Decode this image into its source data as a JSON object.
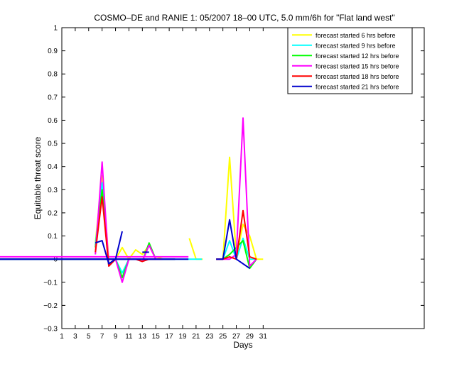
{
  "chart_data": {
    "type": "line",
    "title": "COSMO–DE and RANIE 1: 05/2007 18–00 UTC, 5.0 mm/6h for \"Flat land west\"",
    "xlabel": "Days",
    "ylabel": "Equitable threat score",
    "xlim": [
      1,
      55
    ],
    "ylim": [
      -0.3,
      1
    ],
    "xticks": [
      1,
      3,
      5,
      7,
      9,
      11,
      13,
      15,
      17,
      19,
      21,
      23,
      25,
      27,
      29,
      31
    ],
    "yticks": [
      -0.3,
      -0.2,
      -0.1,
      0,
      0.1,
      0.2,
      0.3,
      0.4,
      0.5,
      0.6,
      0.7,
      0.8,
      0.9,
      1
    ],
    "ytick_labels": [
      "−0.3",
      "−0.2",
      "−0.1",
      "0",
      "0.1",
      "0.2",
      "0.3",
      "0.4",
      "0.5",
      "0.6",
      "0.7",
      "0.8",
      "0.9",
      "1"
    ],
    "grid": false,
    "legend_position": "top-right",
    "series": [
      {
        "name": "forecast started 6 hrs before",
        "color": "#ffff00",
        "x": [
          6,
          7,
          8,
          9,
          10,
          11,
          12,
          13,
          14,
          15,
          16,
          17,
          18,
          19,
          20,
          21,
          22,
          23,
          24,
          25,
          26,
          27,
          28,
          29,
          30,
          31
        ],
        "y": [
          0.07,
          0.36,
          0.0,
          0.0,
          0.05,
          0.0,
          0.04,
          0.02,
          0.06,
          0.0,
          0.01,
          null,
          null,
          null,
          0.09,
          0.0,
          0.0,
          null,
          0.0,
          0.0,
          0.44,
          0.01,
          0.15,
          0.1,
          0.0,
          0.0
        ]
      },
      {
        "name": "forecast started 9 hrs before",
        "color": "#00ffff",
        "x": [
          6,
          7,
          8,
          9,
          10,
          11,
          12,
          13,
          14,
          15,
          16,
          17,
          18,
          19,
          20,
          21,
          22,
          23,
          24,
          25,
          26,
          27,
          28,
          29,
          30,
          31
        ],
        "y": [
          0.06,
          0.33,
          -0.02,
          0.0,
          -0.06,
          0.0,
          0.0,
          0.0,
          0.0,
          0.0,
          0.0,
          null,
          null,
          null,
          null,
          null,
          0.0,
          null,
          0.0,
          0.0,
          0.08,
          0.0,
          0.09,
          0.0,
          0.0,
          null
        ]
      },
      {
        "name": "forecast started 12 hrs before",
        "color": "#00ff00",
        "x": [
          6,
          7,
          8,
          9,
          10,
          11,
          12,
          13,
          14,
          15,
          16,
          17,
          18,
          19,
          20,
          21,
          22,
          23,
          24,
          25,
          26,
          27,
          28,
          29,
          30,
          31
        ],
        "y": [
          0.05,
          0.3,
          -0.03,
          0.0,
          -0.08,
          0.0,
          0.0,
          -0.01,
          0.07,
          0.0,
          0.0,
          null,
          0.0,
          null,
          null,
          null,
          null,
          null,
          0.0,
          0.0,
          0.02,
          0.05,
          0.08,
          -0.04,
          0.0,
          null
        ]
      },
      {
        "name": "forecast started 15 hrs before",
        "color": "#ff00ff",
        "x": [
          6,
          7,
          8,
          9,
          10,
          11,
          12,
          13,
          14,
          15,
          16,
          17,
          18,
          19,
          20,
          21,
          22,
          23,
          24,
          25,
          26,
          27,
          28,
          29,
          30,
          31
        ],
        "y": [
          0.02,
          0.42,
          -0.03,
          0.0,
          -0.1,
          0.0,
          0.0,
          -0.01,
          0.06,
          0.0,
          0.0,
          null,
          null,
          null,
          0.01,
          null,
          null,
          null,
          0.0,
          0.0,
          0.0,
          0.02,
          0.61,
          -0.03,
          0.0,
          null
        ]
      },
      {
        "name": "forecast started 18 hrs before",
        "color": "#ff0000",
        "x": [
          6,
          7,
          8,
          9,
          10,
          11,
          12,
          13,
          14,
          15,
          16,
          17,
          18,
          19,
          20,
          21,
          22,
          23,
          24,
          25,
          26,
          27,
          28,
          29,
          30,
          31
        ],
        "y": [
          0.03,
          0.27,
          -0.03,
          0.0,
          null,
          null,
          0.0,
          -0.01,
          0.0,
          0.0,
          null,
          null,
          null,
          null,
          null,
          null,
          null,
          null,
          0.0,
          0.0,
          0.01,
          0.0,
          0.21,
          0.01,
          0.0,
          null
        ]
      },
      {
        "name": "forecast started 21 hrs before",
        "color": "#0000cc",
        "x": [
          6,
          7,
          8,
          9,
          10,
          11,
          12,
          13,
          14,
          15,
          16,
          17,
          18,
          19,
          20,
          21,
          22,
          23,
          24,
          25,
          26,
          27,
          28,
          29,
          30,
          31
        ],
        "y": [
          0.07,
          0.08,
          -0.02,
          0.0,
          0.12,
          null,
          null,
          0.03,
          0.03,
          null,
          null,
          null,
          0.0,
          null,
          0.0,
          null,
          null,
          null,
          0.0,
          0.0,
          0.17,
          0.0,
          -0.02,
          -0.04,
          null,
          null
        ]
      }
    ]
  }
}
